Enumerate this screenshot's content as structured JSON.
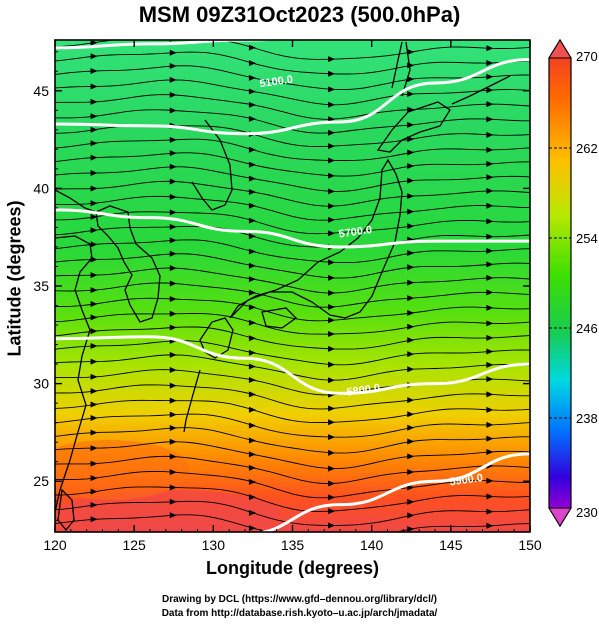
{
  "title": "MSM 09Z31Oct2023 (500.0hPa)",
  "axes": {
    "xlabel": "Longitude (degrees)",
    "ylabel": "Latitude  (degrees)",
    "xticks": [
      "120",
      "125",
      "130",
      "135",
      "140",
      "145",
      "150"
    ],
    "yticks": [
      "25",
      "30",
      "35",
      "40",
      "45"
    ],
    "xlim": [
      120,
      150
    ],
    "ylim": [
      22.4,
      47.6
    ]
  },
  "colorbar": {
    "ticks": [
      "270",
      "262",
      "254",
      "246",
      "238",
      "230"
    ],
    "range": [
      230,
      270
    ],
    "colors": [
      "#cc00cc",
      "#3300dd",
      "#0077ff",
      "#00d8e0",
      "#18cc50",
      "#3fe000",
      "#b8e800",
      "#ffc000",
      "#ff6a00",
      "#f03030"
    ]
  },
  "contours": {
    "labels": [
      "5100.0",
      "5700.0",
      "5800.0",
      "5900.0"
    ],
    "lines": [
      {
        "lat": [
          47.2,
          47.4,
          47.6,
          47.9,
          48.3,
          48.8
        ]
      },
      {
        "lat": [
          43.3,
          43.2,
          42.8,
          43.4,
          45.4,
          46.6
        ]
      },
      {
        "lat": [
          38.9,
          38.5,
          37.8,
          37.0,
          37.3,
          37.3
        ]
      },
      {
        "lat": [
          32.3,
          32.4,
          31.3,
          29.5,
          30.0,
          31.0
        ]
      },
      {
        "lat": [
          22.0,
          22.0,
          22.3,
          23.8,
          25.0,
          26.4
        ]
      }
    ]
  },
  "field_note": "500 hPa temperature (K) shading with wind streamlines and geopotential height contours",
  "credits": {
    "line1": "Drawing by DCL (https://www.gfd–dennou.org/library/dcl/)",
    "line2": "Data from http://database.rish.kyoto–u.ac.jp/arch/jmadata/"
  }
}
